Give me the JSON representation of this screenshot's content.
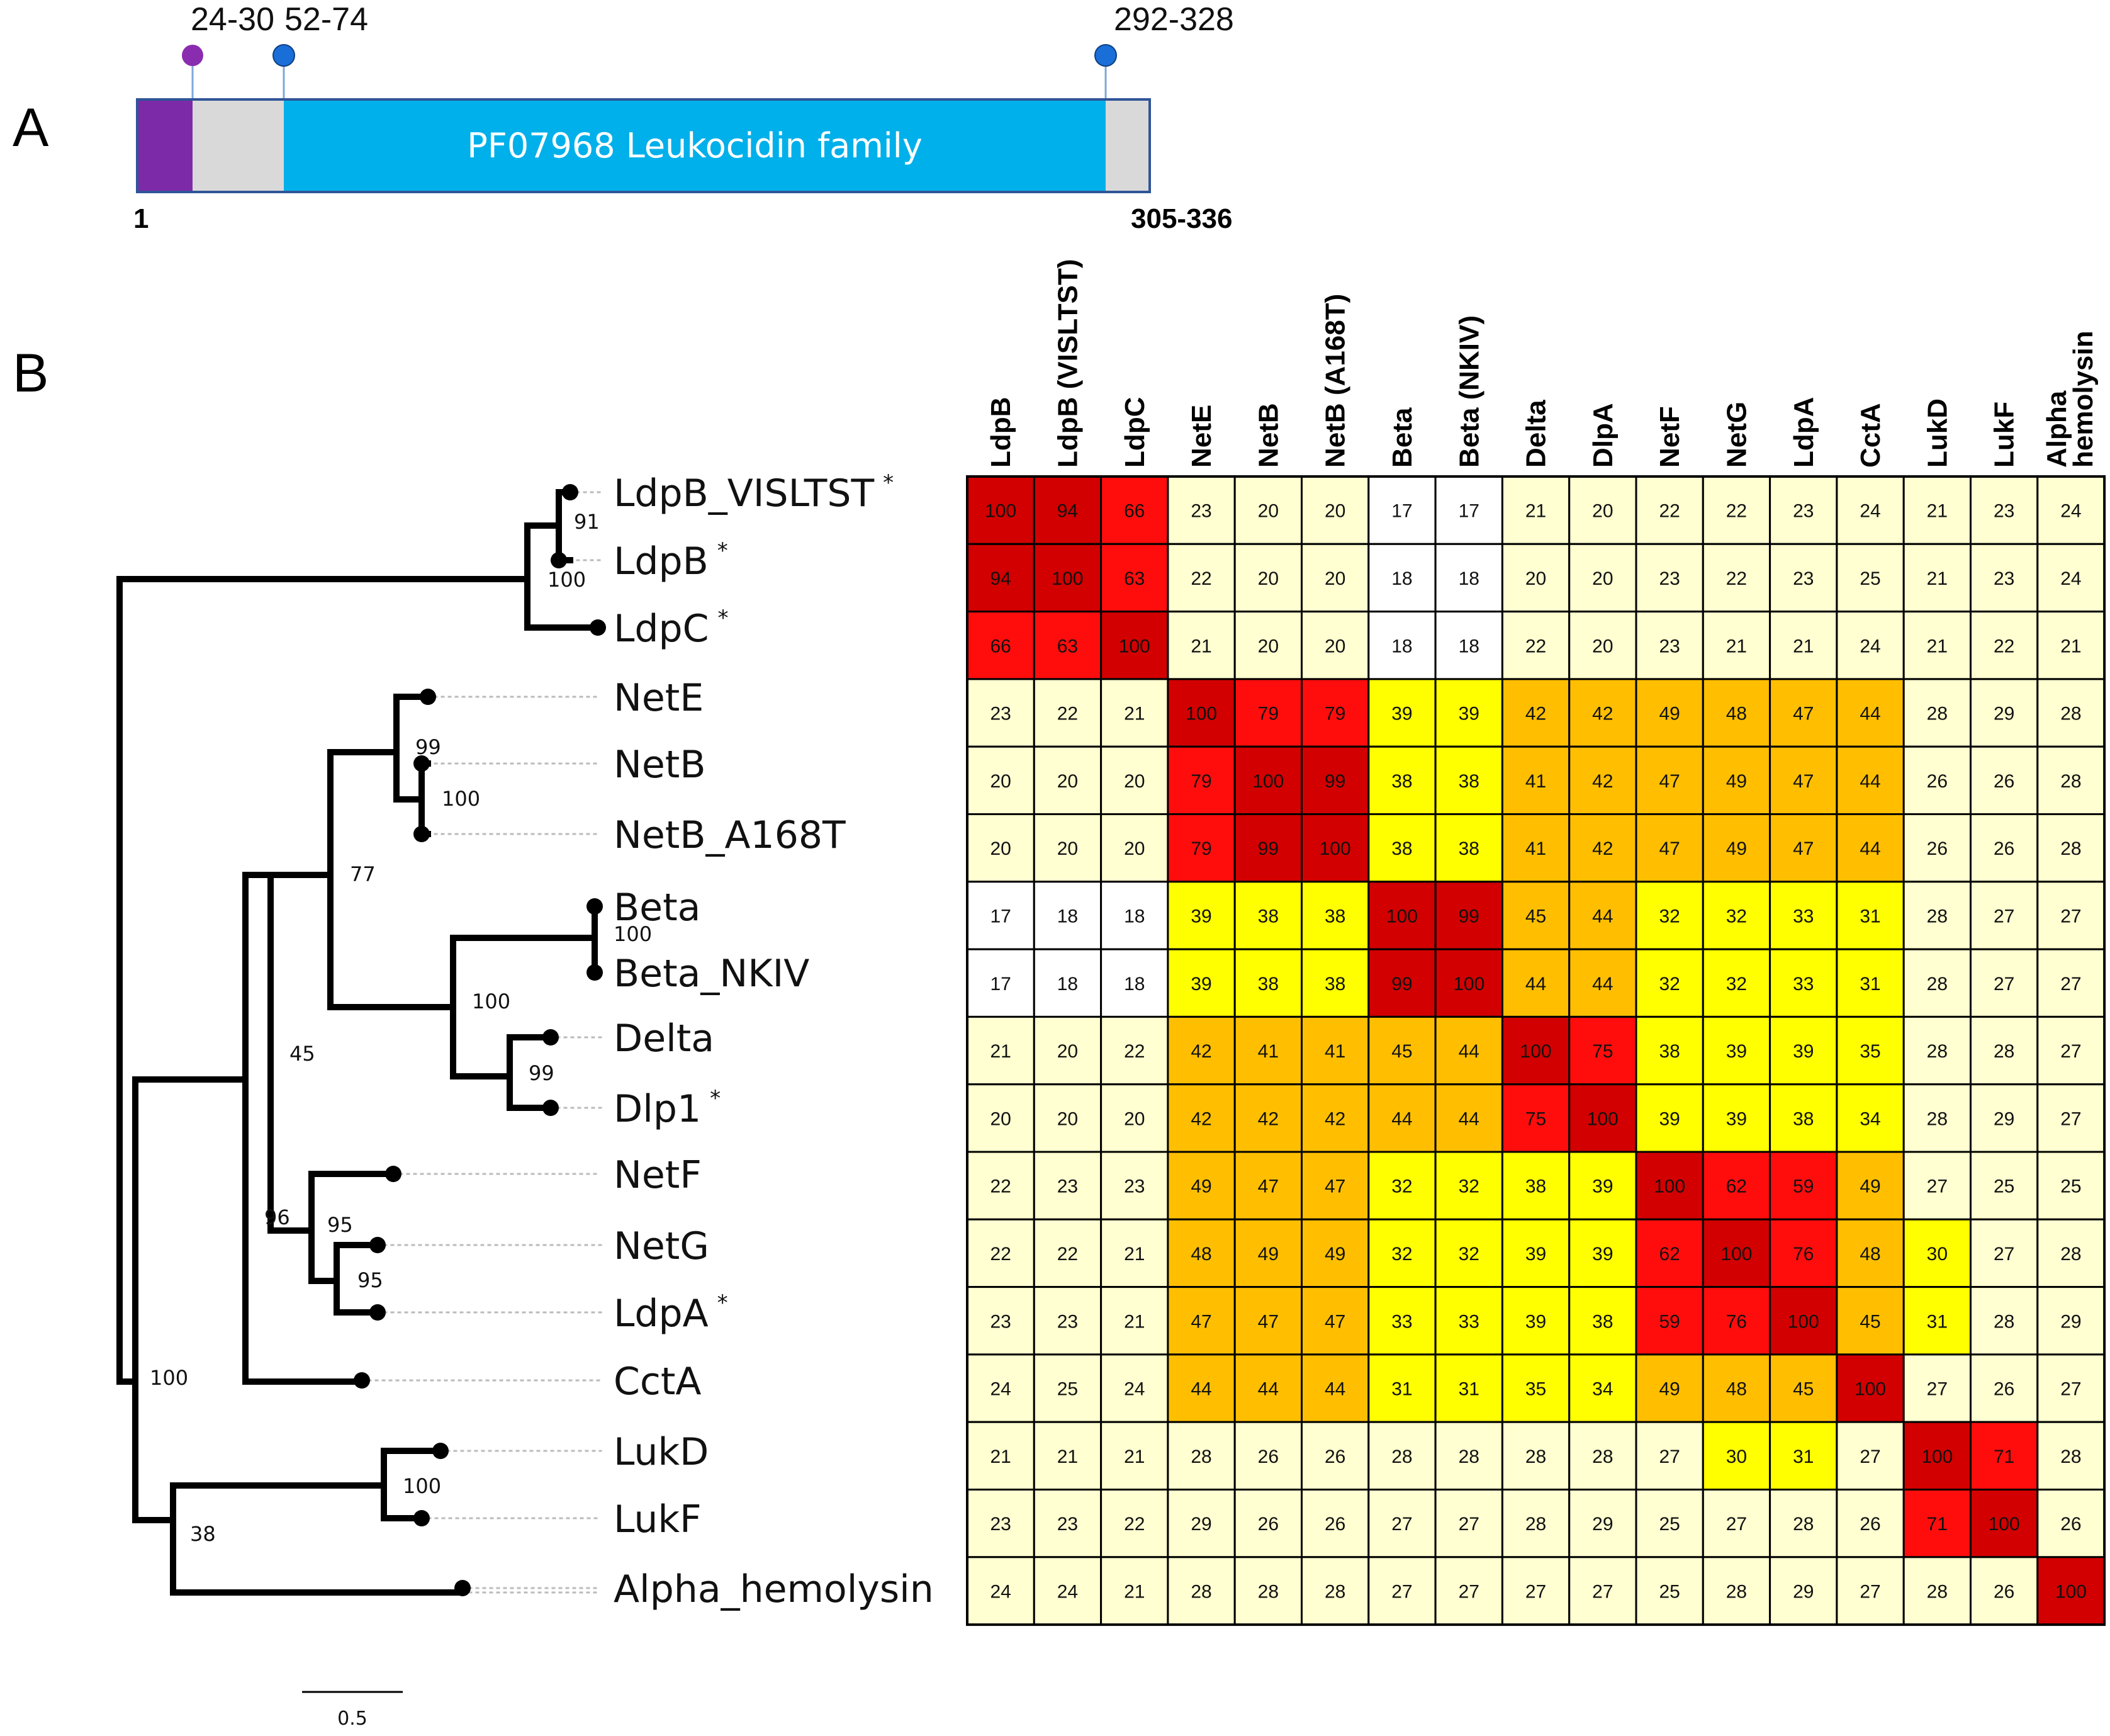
{
  "panel_a": {
    "label": "A",
    "domain_label": "PF07968 Leukocidin family",
    "start_label": "1",
    "end_label": "305-336",
    "markers": [
      {
        "label": "24-30",
        "color": "#8a2cb0"
      },
      {
        "label": "52-74",
        "color": "#1a6ed8"
      },
      {
        "label": "292-328",
        "color": "#1a6ed8"
      }
    ],
    "colors": {
      "signal": "#7d2aa8",
      "gray": "#d9d9d9",
      "domain": "#00b0ea",
      "border": "#2f5597"
    }
  },
  "panel_b": {
    "label": "B",
    "scale_bar_label": "0.5"
  },
  "tree": {
    "leaves": [
      {
        "name": "LdpB_VISLTST",
        "star": "*"
      },
      {
        "name": "LdpB",
        "star": "*"
      },
      {
        "name": "LdpC",
        "star": "*"
      },
      {
        "name": "NetE",
        "star": ""
      },
      {
        "name": "NetB",
        "star": ""
      },
      {
        "name": "NetB_A168T",
        "star": ""
      },
      {
        "name": "Beta",
        "star": ""
      },
      {
        "name": "Beta_NKIV",
        "star": ""
      },
      {
        "name": "Delta",
        "star": ""
      },
      {
        "name": "Dlp1",
        "star": "*"
      },
      {
        "name": "NetF",
        "star": ""
      },
      {
        "name": "NetG",
        "star": ""
      },
      {
        "name": "LdpA",
        "star": "*"
      },
      {
        "name": "CctA",
        "star": ""
      },
      {
        "name": "LukD",
        "star": ""
      },
      {
        "name": "LukF",
        "star": ""
      },
      {
        "name": "Alpha_hemolysin",
        "star": ""
      }
    ],
    "bootstrap": [
      "91",
      "100",
      "99",
      "100",
      "77",
      "100",
      "100",
      "99",
      "45",
      "96",
      "95",
      "95",
      "100",
      "100",
      "38"
    ]
  },
  "heatmap": {
    "columns": [
      [
        "LdpB"
      ],
      [
        "LdpB (VISLTST)"
      ],
      [
        "LdpC"
      ],
      [
        "NetE"
      ],
      [
        "NetB"
      ],
      [
        "NetB (A168T)"
      ],
      [
        "Beta"
      ],
      [
        "Beta (NKIV)"
      ],
      [
        "Delta"
      ],
      [
        "DlpA"
      ],
      [
        "NetF"
      ],
      [
        "NetG"
      ],
      [
        "LdpA"
      ],
      [
        "CctA"
      ],
      [
        "LukD"
      ],
      [
        "LukF"
      ],
      [
        "Alpha",
        "hemolysin"
      ]
    ],
    "values": [
      [
        100,
        94,
        66,
        23,
        20,
        20,
        17,
        17,
        21,
        20,
        22,
        22,
        23,
        24,
        21,
        23,
        24
      ],
      [
        94,
        100,
        63,
        22,
        20,
        20,
        18,
        18,
        20,
        20,
        23,
        22,
        23,
        25,
        21,
        23,
        24
      ],
      [
        66,
        63,
        100,
        21,
        20,
        20,
        18,
        18,
        22,
        20,
        23,
        21,
        21,
        24,
        21,
        22,
        21
      ],
      [
        23,
        22,
        21,
        100,
        79,
        79,
        39,
        39,
        42,
        42,
        49,
        48,
        47,
        44,
        28,
        29,
        28
      ],
      [
        20,
        20,
        20,
        79,
        100,
        99,
        38,
        38,
        41,
        42,
        47,
        49,
        47,
        44,
        26,
        26,
        28
      ],
      [
        20,
        20,
        20,
        79,
        99,
        100,
        38,
        38,
        41,
        42,
        47,
        49,
        47,
        44,
        26,
        26,
        28
      ],
      [
        17,
        18,
        18,
        39,
        38,
        38,
        100,
        99,
        45,
        44,
        32,
        32,
        33,
        31,
        28,
        27,
        27
      ],
      [
        17,
        18,
        18,
        39,
        38,
        38,
        99,
        100,
        44,
        44,
        32,
        32,
        33,
        31,
        28,
        27,
        27
      ],
      [
        21,
        20,
        22,
        42,
        41,
        41,
        45,
        44,
        100,
        75,
        38,
        39,
        39,
        35,
        28,
        28,
        27
      ],
      [
        20,
        20,
        20,
        42,
        42,
        42,
        44,
        44,
        75,
        100,
        39,
        39,
        38,
        34,
        28,
        29,
        27
      ],
      [
        22,
        23,
        23,
        49,
        47,
        47,
        32,
        32,
        38,
        39,
        100,
        62,
        59,
        49,
        27,
        25,
        25
      ],
      [
        22,
        22,
        21,
        48,
        49,
        49,
        32,
        32,
        39,
        39,
        62,
        100,
        76,
        48,
        30,
        27,
        28
      ],
      [
        23,
        23,
        21,
        47,
        47,
        47,
        33,
        33,
        39,
        38,
        59,
        76,
        100,
        45,
        31,
        28,
        29
      ],
      [
        24,
        25,
        24,
        44,
        44,
        44,
        31,
        31,
        35,
        34,
        49,
        48,
        45,
        100,
        27,
        26,
        27
      ],
      [
        21,
        21,
        21,
        28,
        26,
        26,
        28,
        28,
        28,
        28,
        27,
        30,
        31,
        27,
        100,
        71,
        28
      ],
      [
        23,
        23,
        22,
        29,
        26,
        26,
        27,
        27,
        28,
        29,
        25,
        27,
        28,
        26,
        71,
        100,
        26
      ],
      [
        24,
        24,
        21,
        28,
        28,
        28,
        27,
        27,
        27,
        27,
        25,
        28,
        29,
        27,
        28,
        26,
        100
      ]
    ],
    "colors": {
      "dark_red": "#d20000",
      "red": "#ff0d0d",
      "orange": "#ffbf00",
      "yellow": "#ffff00",
      "cream": "#ffffd1",
      "white": "#ffffff",
      "grid": "#000000"
    }
  }
}
